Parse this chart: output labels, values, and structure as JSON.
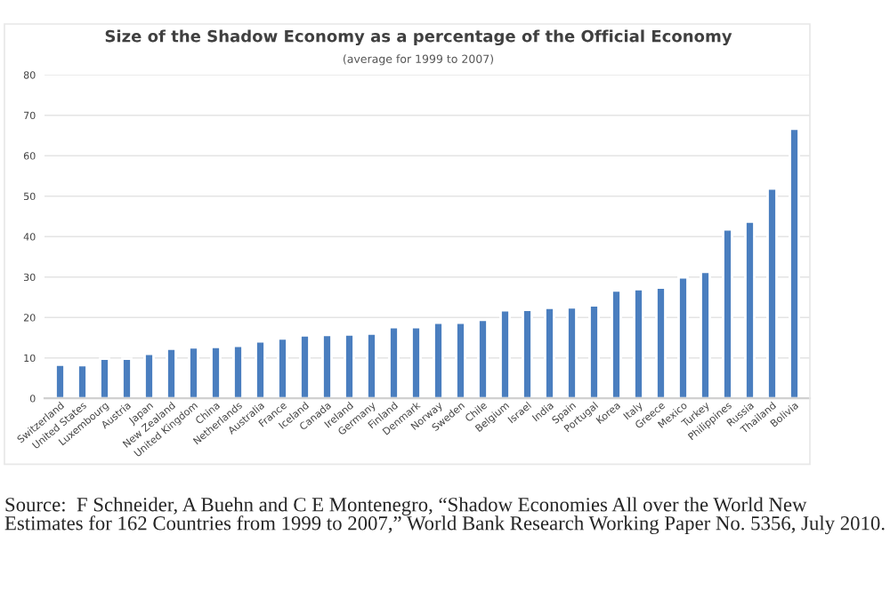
{
  "chart_data": {
    "type": "bar",
    "title": "Size of the Shadow Economy as a percentage of the Official Economy",
    "subtitle": "(average for 1999 to 2007)",
    "categories": [
      "Switzerland",
      "United States",
      "Luxembourg",
      "Austria",
      "Japan",
      "New Zealand",
      "United Kingdom",
      "China",
      "Netherlands",
      "Australia",
      "France",
      "Iceland",
      "Canada",
      "Ireland",
      "Germany",
      "Finland",
      "Denmark",
      "Norway",
      "Sweden",
      "Chile",
      "Belgium",
      "Israel",
      "India",
      "Spain",
      "Portugal",
      "Korea",
      "Italy",
      "Greece",
      "Mexico",
      "Turkey",
      "Philippines",
      "Russia",
      "Thailand",
      "Bolivia"
    ],
    "values": [
      8.3,
      8.2,
      9.8,
      9.8,
      11.0,
      12.3,
      12.6,
      12.7,
      13.0,
      14.1,
      14.8,
      15.6,
      15.7,
      15.8,
      16.0,
      17.6,
      17.6,
      18.7,
      18.7,
      19.4,
      21.8,
      21.9,
      22.4,
      22.5,
      23.0,
      26.7,
      27.0,
      27.4,
      29.9,
      31.3,
      41.8,
      43.7,
      51.9,
      66.7
    ],
    "color": "#4a7ebf",
    "ylim": [
      0,
      80
    ],
    "yticks": [
      0,
      10,
      20,
      30,
      40,
      50,
      60,
      70,
      80
    ],
    "grid": "y",
    "annotations": [
      "Source:  F Schneider, A Buehn and C E Montenegro, “Shadow Economies All over the World New Estimates for 162 Countries from 1999 to 2007,” World Bank Research Working Paper No. 5356, July 2010."
    ]
  }
}
